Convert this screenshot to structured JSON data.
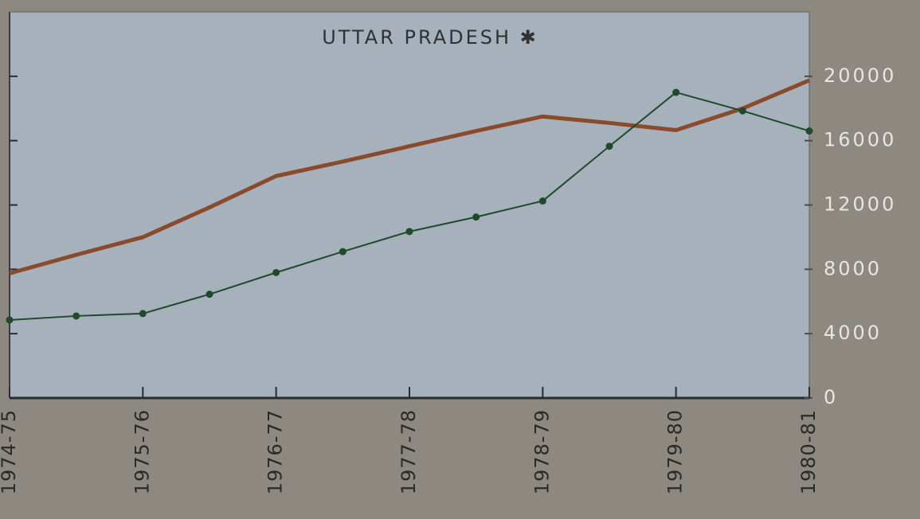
{
  "chart_data": {
    "type": "line",
    "title": "UTTAR PRADESH ✱",
    "categories": [
      "1974-75",
      null,
      "1975-76",
      null,
      "1976-77",
      null,
      "1977-78",
      null,
      "1978-79",
      null,
      "1979-80",
      null,
      "1980-81"
    ],
    "series": [
      {
        "color": "#8a4a2c",
        "values": [
          7750,
          8900,
          10000,
          11850,
          13800,
          14700,
          15650,
          16600,
          17500,
          17100,
          16650,
          18000,
          19750
        ]
      },
      {
        "color": "#1f4a2c",
        "values": [
          4850,
          5100,
          5250,
          6450,
          7800,
          9100,
          10350,
          11250,
          12250,
          15650,
          19000,
          17850,
          16600
        ]
      }
    ],
    "ylim": [
      0,
      24000
    ],
    "yticks": [
      0,
      4000,
      8000,
      12000,
      16000,
      20000
    ]
  }
}
